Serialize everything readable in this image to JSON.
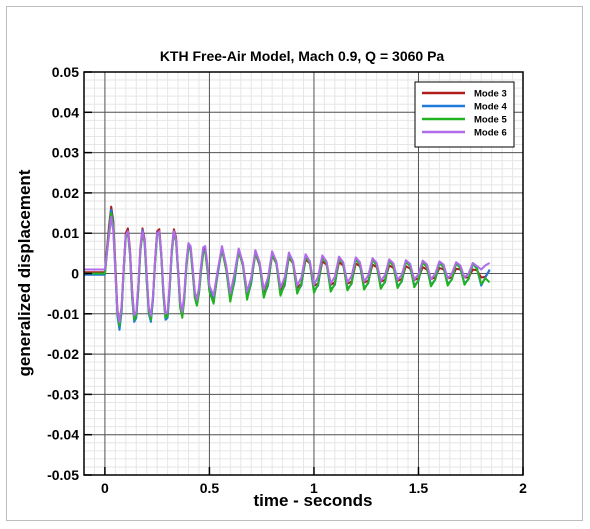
{
  "chart_data": {
    "type": "line",
    "title": "KTH Free-Air Model, Mach 0.9, Q = 3060 Pa",
    "xlabel": "time - seconds",
    "ylabel": "generalized displacement",
    "xlim": [
      -0.1,
      2.0
    ],
    "ylim": [
      -0.05,
      0.05
    ],
    "xticks": [
      0,
      0.5,
      1,
      1.5,
      2
    ],
    "xtick_labels": [
      "0",
      "0.5",
      "1",
      "1.5",
      "2"
    ],
    "yticks": [
      0.05,
      0.04,
      0.03,
      0.02,
      0.01,
      0,
      -0.01,
      -0.02,
      -0.03,
      -0.04,
      -0.05
    ],
    "ytick_labels": [
      "0.05",
      "0.04",
      "0.03",
      "0.02",
      "0.01",
      "0",
      "-0.01",
      "-0.02",
      "-0.03",
      "-0.04",
      "-0.05"
    ],
    "grid": true,
    "legend_position": "top-right",
    "series": [
      {
        "name": "Mode 3",
        "color": "#b01c1c",
        "x": [
          -0.1,
          0.0,
          0.02,
          0.03,
          0.04,
          0.05,
          0.06,
          0.07,
          0.08,
          0.09,
          0.1,
          0.11,
          0.12,
          0.13,
          0.14,
          0.15,
          0.16,
          0.17,
          0.18,
          0.19,
          0.2,
          0.21,
          0.22,
          0.23,
          0.24,
          0.25,
          0.26,
          0.27,
          0.28,
          0.29,
          0.3,
          0.31,
          0.32,
          0.33,
          0.34,
          0.35,
          0.36,
          0.37,
          0.38,
          0.39,
          0.4,
          0.41,
          0.42,
          0.43,
          0.44,
          0.45,
          0.46,
          0.47,
          0.48,
          0.49,
          0.5,
          0.52,
          0.54,
          0.56,
          0.58,
          0.6,
          0.62,
          0.64,
          0.66,
          0.68,
          0.7,
          0.72,
          0.74,
          0.76,
          0.78,
          0.8,
          0.82,
          0.84,
          0.86,
          0.88,
          0.9,
          0.92,
          0.94,
          0.96,
          0.98,
          1.0,
          1.02,
          1.04,
          1.06,
          1.08,
          1.1,
          1.12,
          1.14,
          1.16,
          1.18,
          1.2,
          1.22,
          1.24,
          1.26,
          1.28,
          1.3,
          1.32,
          1.34,
          1.36,
          1.38,
          1.4,
          1.42,
          1.44,
          1.46,
          1.48,
          1.5,
          1.52,
          1.54,
          1.56,
          1.58,
          1.6,
          1.62,
          1.64,
          1.66,
          1.68,
          1.7,
          1.72,
          1.74,
          1.76,
          1.78,
          1.8,
          1.82,
          1.84
        ],
        "y": [
          0.0003,
          0.0003,
          0.012,
          0.0166,
          0.013,
          0.002,
          -0.009,
          -0.0125,
          -0.0085,
          0.0015,
          0.01,
          0.0112,
          0.006,
          -0.004,
          -0.011,
          -0.0105,
          -0.003,
          0.0065,
          0.0112,
          0.0085,
          -0.0005,
          -0.009,
          -0.011,
          -0.006,
          0.0035,
          0.0105,
          0.011,
          0.005,
          -0.0045,
          -0.0105,
          -0.01,
          -0.003,
          0.006,
          0.011,
          0.009,
          0.001,
          -0.0075,
          -0.01,
          -0.0055,
          0.0025,
          0.0075,
          0.0065,
          0.001,
          -0.005,
          -0.007,
          -0.004,
          0.0015,
          0.006,
          0.0062,
          0.002,
          -0.0035,
          -0.006,
          0.0005,
          0.006,
          0.001,
          -0.0055,
          -0.001,
          0.0055,
          0.002,
          -0.005,
          -0.0015,
          0.005,
          0.002,
          -0.0045,
          -0.002,
          0.0045,
          0.0025,
          -0.004,
          -0.002,
          0.004,
          0.0025,
          -0.0035,
          -0.0025,
          0.0035,
          0.0025,
          -0.003,
          -0.0025,
          0.003,
          0.0022,
          -0.0028,
          -0.0022,
          0.0028,
          0.002,
          -0.0025,
          -0.002,
          0.0025,
          0.0018,
          -0.0022,
          -0.0018,
          0.0022,
          0.0016,
          -0.002,
          -0.0016,
          0.002,
          0.0014,
          -0.0018,
          -0.0014,
          0.0018,
          0.0012,
          -0.0016,
          -0.0012,
          0.0016,
          0.001,
          -0.0014,
          -0.001,
          0.0014,
          0.001,
          -0.0012,
          -0.001,
          0.0012,
          0.001,
          -0.001,
          -0.001,
          0.001,
          0.0008,
          -0.001,
          -0.0008,
          0.0008
        ]
      },
      {
        "name": "Mode 4",
        "color": "#1f7bd8",
        "x": [
          -0.1,
          0.0,
          0.02,
          0.03,
          0.04,
          0.05,
          0.06,
          0.07,
          0.08,
          0.09,
          0.1,
          0.11,
          0.12,
          0.13,
          0.14,
          0.15,
          0.16,
          0.17,
          0.18,
          0.19,
          0.2,
          0.21,
          0.22,
          0.23,
          0.24,
          0.25,
          0.26,
          0.27,
          0.28,
          0.29,
          0.3,
          0.31,
          0.32,
          0.33,
          0.34,
          0.35,
          0.36,
          0.37,
          0.38,
          0.39,
          0.4,
          0.41,
          0.42,
          0.43,
          0.44,
          0.45,
          0.46,
          0.47,
          0.48,
          0.49,
          0.5,
          0.52,
          0.54,
          0.56,
          0.58,
          0.6,
          0.62,
          0.64,
          0.66,
          0.68,
          0.7,
          0.72,
          0.74,
          0.76,
          0.78,
          0.8,
          0.82,
          0.84,
          0.86,
          0.88,
          0.9,
          0.92,
          0.94,
          0.96,
          0.98,
          1.0,
          1.02,
          1.04,
          1.06,
          1.08,
          1.1,
          1.12,
          1.14,
          1.16,
          1.18,
          1.2,
          1.22,
          1.24,
          1.26,
          1.28,
          1.3,
          1.32,
          1.34,
          1.36,
          1.38,
          1.4,
          1.42,
          1.44,
          1.46,
          1.48,
          1.5,
          1.52,
          1.54,
          1.56,
          1.58,
          1.6,
          1.62,
          1.64,
          1.66,
          1.68,
          1.7,
          1.72,
          1.74,
          1.76,
          1.78,
          1.8,
          1.82,
          1.84
        ],
        "y": [
          -0.0003,
          -0.0003,
          0.011,
          0.0158,
          0.012,
          0.001,
          -0.0105,
          -0.014,
          -0.0095,
          0.001,
          0.0095,
          0.0105,
          0.005,
          -0.0055,
          -0.012,
          -0.011,
          -0.0035,
          0.006,
          0.0108,
          0.008,
          -0.0015,
          -0.01,
          -0.012,
          -0.0065,
          0.003,
          0.01,
          0.0105,
          0.0045,
          -0.005,
          -0.0115,
          -0.011,
          -0.004,
          0.0055,
          0.0105,
          0.0085,
          0.0005,
          -0.008,
          -0.0105,
          -0.006,
          0.002,
          0.007,
          0.006,
          0.0005,
          -0.0055,
          -0.0075,
          -0.0045,
          0.001,
          0.0055,
          0.0058,
          0.0015,
          -0.004,
          -0.007,
          0.0,
          0.0065,
          0.0015,
          -0.0065,
          -0.002,
          0.006,
          0.0025,
          -0.006,
          -0.0025,
          0.0055,
          0.0025,
          -0.0055,
          -0.003,
          0.005,
          0.003,
          -0.005,
          -0.003,
          0.0045,
          0.003,
          -0.0045,
          -0.003,
          0.0042,
          0.003,
          -0.0042,
          -0.003,
          0.004,
          0.0028,
          -0.004,
          -0.0028,
          0.0038,
          0.0026,
          -0.0038,
          -0.0026,
          0.0036,
          0.0024,
          -0.0036,
          -0.0024,
          0.0034,
          0.0022,
          -0.0034,
          -0.0022,
          0.0032,
          0.002,
          -0.0032,
          -0.002,
          0.003,
          0.0018,
          -0.003,
          -0.0018,
          0.0028,
          0.0016,
          -0.0028,
          -0.0016,
          0.0026,
          0.0015,
          -0.0026,
          -0.0015,
          0.0025,
          0.0014,
          -0.0025,
          -0.0014,
          0.0024,
          0.0012,
          -0.003,
          -0.001,
          0.001
        ]
      },
      {
        "name": "Mode 5",
        "color": "#22b322",
        "x": [
          -0.1,
          0.0,
          0.02,
          0.03,
          0.04,
          0.05,
          0.06,
          0.07,
          0.08,
          0.09,
          0.1,
          0.11,
          0.12,
          0.13,
          0.14,
          0.15,
          0.16,
          0.17,
          0.18,
          0.19,
          0.2,
          0.21,
          0.22,
          0.23,
          0.24,
          0.25,
          0.26,
          0.27,
          0.28,
          0.29,
          0.3,
          0.31,
          0.32,
          0.33,
          0.34,
          0.35,
          0.36,
          0.37,
          0.38,
          0.39,
          0.4,
          0.41,
          0.42,
          0.43,
          0.44,
          0.45,
          0.46,
          0.47,
          0.48,
          0.49,
          0.5,
          0.52,
          0.54,
          0.56,
          0.58,
          0.6,
          0.62,
          0.64,
          0.66,
          0.68,
          0.7,
          0.72,
          0.74,
          0.76,
          0.78,
          0.8,
          0.82,
          0.84,
          0.86,
          0.88,
          0.9,
          0.92,
          0.94,
          0.96,
          0.98,
          1.0,
          1.02,
          1.04,
          1.06,
          1.08,
          1.1,
          1.12,
          1.14,
          1.16,
          1.18,
          1.2,
          1.22,
          1.24,
          1.26,
          1.28,
          1.3,
          1.32,
          1.34,
          1.36,
          1.38,
          1.4,
          1.42,
          1.44,
          1.46,
          1.48,
          1.5,
          1.52,
          1.54,
          1.56,
          1.58,
          1.6,
          1.62,
          1.64,
          1.66,
          1.68,
          1.7,
          1.72,
          1.74,
          1.76,
          1.78,
          1.8,
          1.82,
          1.84
        ],
        "y": [
          0.0,
          0.0,
          0.0105,
          0.015,
          0.0115,
          0.0005,
          -0.01,
          -0.013,
          -0.009,
          0.0005,
          0.009,
          0.01,
          0.0045,
          -0.006,
          -0.0115,
          -0.0105,
          -0.004,
          0.0055,
          0.01,
          0.0075,
          -0.002,
          -0.0095,
          -0.0115,
          -0.006,
          0.0025,
          0.0095,
          0.01,
          0.004,
          -0.0055,
          -0.011,
          -0.0105,
          -0.0035,
          0.005,
          0.01,
          0.008,
          0.0,
          -0.0085,
          -0.011,
          -0.0065,
          0.0015,
          0.0065,
          0.0058,
          0.0,
          -0.006,
          -0.008,
          -0.005,
          0.0005,
          0.005,
          0.0055,
          0.001,
          -0.0045,
          -0.0075,
          0.0005,
          0.006,
          0.001,
          -0.007,
          -0.0015,
          0.0055,
          0.002,
          -0.0065,
          -0.002,
          0.005,
          0.0022,
          -0.006,
          -0.0025,
          0.0048,
          0.0025,
          -0.0055,
          -0.0025,
          0.0045,
          0.0025,
          -0.005,
          -0.0025,
          0.0042,
          0.0025,
          -0.0048,
          -0.0025,
          0.004,
          0.0025,
          -0.0045,
          -0.0025,
          0.0038,
          0.0024,
          -0.0042,
          -0.0024,
          0.0036,
          0.0022,
          -0.004,
          -0.0022,
          0.0034,
          0.002,
          -0.0038,
          -0.002,
          0.0032,
          0.0018,
          -0.0036,
          -0.0018,
          0.003,
          0.0018,
          -0.0034,
          -0.0016,
          0.0028,
          0.0016,
          -0.0032,
          -0.0015,
          0.0027,
          0.0015,
          -0.003,
          -0.0014,
          0.0026,
          0.0014,
          -0.0028,
          -0.0013,
          0.0025,
          0.0012,
          -0.0026,
          -0.0012,
          -0.0022
        ]
      },
      {
        "name": "Mode 6",
        "color": "#b06ce8",
        "x": [
          -0.1,
          0.0,
          0.02,
          0.03,
          0.04,
          0.05,
          0.06,
          0.07,
          0.08,
          0.09,
          0.1,
          0.11,
          0.12,
          0.13,
          0.14,
          0.15,
          0.16,
          0.17,
          0.18,
          0.19,
          0.2,
          0.21,
          0.22,
          0.23,
          0.24,
          0.25,
          0.26,
          0.27,
          0.28,
          0.29,
          0.3,
          0.31,
          0.32,
          0.33,
          0.34,
          0.35,
          0.36,
          0.37,
          0.38,
          0.39,
          0.4,
          0.41,
          0.42,
          0.43,
          0.44,
          0.45,
          0.46,
          0.47,
          0.48,
          0.49,
          0.5,
          0.52,
          0.54,
          0.56,
          0.58,
          0.6,
          0.62,
          0.64,
          0.66,
          0.68,
          0.7,
          0.72,
          0.74,
          0.76,
          0.78,
          0.8,
          0.82,
          0.84,
          0.86,
          0.88,
          0.9,
          0.92,
          0.94,
          0.96,
          0.98,
          1.0,
          1.02,
          1.04,
          1.06,
          1.08,
          1.1,
          1.12,
          1.14,
          1.16,
          1.18,
          1.2,
          1.22,
          1.24,
          1.26,
          1.28,
          1.3,
          1.32,
          1.34,
          1.36,
          1.38,
          1.4,
          1.42,
          1.44,
          1.46,
          1.48,
          1.5,
          1.52,
          1.54,
          1.56,
          1.58,
          1.6,
          1.62,
          1.64,
          1.66,
          1.68,
          1.7,
          1.72,
          1.74,
          1.76,
          1.78,
          1.8,
          1.82,
          1.84
        ],
        "y": [
          0.001,
          0.001,
          0.0095,
          0.014,
          0.0105,
          0.0,
          -0.0095,
          -0.012,
          -0.008,
          0.0015,
          0.0095,
          0.0105,
          0.0055,
          -0.0045,
          -0.0105,
          -0.0095,
          -0.0025,
          0.0065,
          0.0105,
          0.008,
          0.0,
          -0.0085,
          -0.0105,
          -0.0055,
          0.0035,
          0.01,
          0.0105,
          0.005,
          -0.004,
          -0.01,
          -0.0095,
          -0.0025,
          0.006,
          0.0105,
          0.0085,
          0.001,
          -0.007,
          -0.0095,
          -0.005,
          0.003,
          0.0075,
          0.0068,
          0.0015,
          -0.0045,
          -0.0065,
          -0.0035,
          0.002,
          0.0065,
          0.0068,
          0.0025,
          -0.003,
          -0.0055,
          0.001,
          0.0068,
          0.002,
          -0.005,
          0.0,
          0.0062,
          0.0025,
          -0.0045,
          -0.001,
          0.0058,
          0.0028,
          -0.004,
          -0.001,
          0.0055,
          0.003,
          -0.0035,
          -0.001,
          0.0052,
          0.003,
          -0.003,
          -0.001,
          0.0048,
          0.003,
          -0.0028,
          -0.0008,
          0.0045,
          0.003,
          -0.0025,
          -0.0008,
          0.0042,
          0.0028,
          -0.0022,
          -0.0006,
          0.004,
          0.0028,
          -0.002,
          -0.0005,
          0.0038,
          0.0026,
          -0.0018,
          -0.0004,
          0.0035,
          0.0025,
          -0.0016,
          -0.0003,
          0.0033,
          0.0024,
          -0.0015,
          -0.0002,
          0.0032,
          0.0023,
          -0.0014,
          -0.0001,
          0.003,
          0.0022,
          -0.0012,
          0.0,
          0.0028,
          0.002,
          -0.001,
          0.0,
          0.0026,
          0.0018,
          0.001,
          0.002,
          0.0026
        ]
      }
    ]
  }
}
